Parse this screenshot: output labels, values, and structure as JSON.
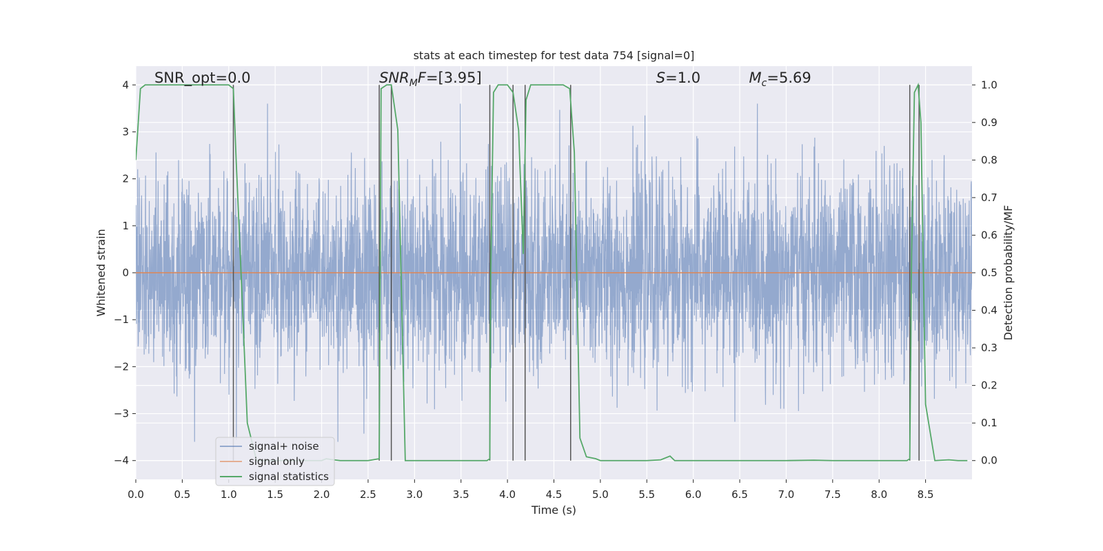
{
  "chart_data": {
    "type": "line",
    "title": "stats at each timestep for test data 754 [signal=0]",
    "xlabel": "Time (s)",
    "ylabel": "Whitened strain",
    "y2label": "Detection probability/MF",
    "xlim": [
      0,
      9.0
    ],
    "ylim": [
      -4.4,
      4.4
    ],
    "y2lim": [
      -0.05,
      1.05
    ],
    "xticks": [
      0.0,
      0.5,
      1.0,
      1.5,
      2.0,
      2.5,
      3.0,
      3.5,
      4.0,
      4.5,
      5.0,
      5.5,
      6.0,
      6.5,
      7.0,
      7.5,
      8.0,
      8.5
    ],
    "xtick_labels": [
      "0.0",
      "0.5",
      "1.0",
      "1.5",
      "2.0",
      "2.5",
      "3.0",
      "3.5",
      "4.0",
      "4.5",
      "5.0",
      "5.5",
      "6.0",
      "6.5",
      "7.0",
      "7.5",
      "8.0",
      "8.5"
    ],
    "yticks": [
      4,
      3,
      2,
      1,
      0,
      -1,
      -2,
      -3,
      -4
    ],
    "ytick_labels": [
      "4",
      "3",
      "2",
      "1",
      "0",
      "−1",
      "−2",
      "−3",
      "−4"
    ],
    "y2ticks": [
      1.0,
      0.9,
      0.8,
      0.7,
      0.6,
      0.5,
      0.4,
      0.3,
      0.2,
      0.1,
      0.0
    ],
    "y2tick_labels": [
      "1.0",
      "0.9",
      "0.8",
      "0.7",
      "0.6",
      "0.5",
      "0.4",
      "0.3",
      "0.2",
      "0.1",
      "0.0"
    ],
    "grid": true,
    "legend_position": "lower-left",
    "annotations": [
      {
        "id": "snr-opt",
        "text": "SNR_opt=0.0",
        "x": 0.2
      },
      {
        "id": "snr-mf",
        "text": "SNR",
        "sub": "M",
        "rest": "F=[3.95]",
        "x": 2.62
      },
      {
        "id": "s-stat",
        "text": "S",
        "rest": "=1.0",
        "x": 5.6
      },
      {
        "id": "mc",
        "text": "M",
        "sub": "c",
        "rest": "=5.69",
        "x": 6.6
      }
    ],
    "series": [
      {
        "name": "signal+ noise",
        "color": "#4c72b0",
        "noise_amplitude": 3.6
      },
      {
        "name": "signal only",
        "color": "#dd8452",
        "values": [
          0.0
        ]
      },
      {
        "name": "signal statistics",
        "color": "#55a868",
        "x": [
          0.0,
          0.05,
          0.1,
          0.2,
          0.5,
          1.0,
          1.05,
          1.08,
          1.15,
          1.2,
          1.3,
          1.5,
          1.8,
          2.0,
          2.05,
          2.1,
          2.2,
          2.5,
          2.55,
          2.62,
          2.64,
          2.7,
          2.75,
          2.82,
          2.9,
          3.0,
          3.5,
          3.78,
          3.81,
          3.82,
          3.85,
          3.9,
          4.0,
          4.06,
          4.12,
          4.17,
          4.2,
          4.25,
          4.35,
          4.6,
          4.67,
          4.72,
          4.78,
          4.85,
          4.95,
          5.0,
          5.5,
          5.65,
          5.75,
          5.8,
          6.0,
          7.0,
          7.3,
          7.5,
          8.0,
          8.3,
          8.33,
          8.35,
          8.38,
          8.42,
          8.45,
          8.5,
          8.6,
          8.75,
          8.85,
          8.95
        ],
        "values": [
          0.8,
          0.99,
          1.0,
          1.0,
          1.0,
          1.0,
          0.99,
          0.8,
          0.4,
          0.1,
          0.0,
          0.0,
          0.0,
          0.0,
          0.005,
          0.003,
          0.0,
          0.0,
          0.002,
          0.005,
          0.99,
          1.0,
          1.0,
          0.88,
          0.0,
          0.0,
          0.0,
          0.0,
          0.005,
          0.5,
          0.98,
          1.0,
          1.0,
          0.98,
          0.88,
          0.55,
          0.96,
          1.0,
          1.0,
          1.0,
          0.99,
          0.82,
          0.06,
          0.01,
          0.005,
          0.0,
          0.0,
          0.002,
          0.012,
          0.0,
          0.0,
          0.0,
          0.001,
          0.0,
          0.0,
          0.0,
          0.005,
          0.55,
          0.98,
          1.0,
          0.9,
          0.15,
          0.0,
          0.002,
          0.0,
          0.0
        ]
      }
    ],
    "vertical_lines": [
      1.05,
      2.62,
      2.75,
      3.81,
      4.06,
      4.19,
      4.68,
      8.33,
      8.43
    ],
    "line_colors": {
      "vertical": "#555555",
      "background": "#eaeaf2",
      "grid": "#ffffff"
    }
  }
}
